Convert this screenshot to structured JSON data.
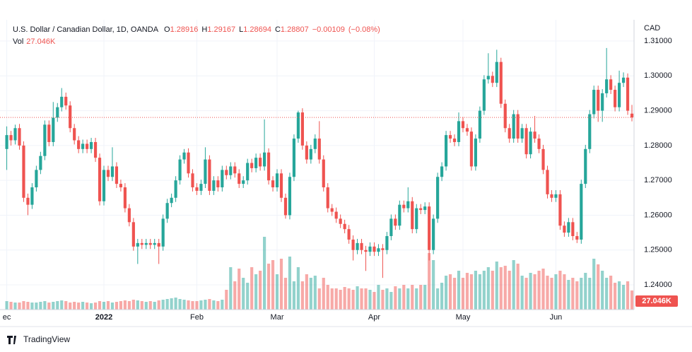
{
  "chart_data": {
    "type": "candlestick",
    "title": "U.S. Dollar / Canadian Dollar, 1D, OANDA",
    "legend_keys": [
      "O",
      "H",
      "L",
      "C"
    ],
    "change": {
      "value": -0.00109,
      "label": "−0.00109"
    },
    "change_pct": {
      "value": -0.08,
      "label": "(−0.08%)"
    },
    "volume_title": "Vol",
    "volume_last_label": "27.046K",
    "currency": "CAD",
    "brand": "TradingView",
    "up_color": "#26a69a",
    "down_color": "#ef5350",
    "grid": true,
    "xlim": [
      -1.6,
      148.5
    ],
    "xticks": [
      {
        "value": 0,
        "label": "ec"
      },
      {
        "value": 23,
        "label": "2022"
      },
      {
        "value": 45,
        "label": "Feb"
      },
      {
        "value": 64,
        "label": "Mar"
      },
      {
        "value": 87,
        "label": "Apr"
      },
      {
        "value": 108,
        "label": "May"
      },
      {
        "value": 130,
        "label": "Jun"
      }
    ],
    "ylim": [
      1.2329,
      1.3161
    ],
    "yticks": [
      {
        "value": 1.31,
        "label": "1.31000"
      },
      {
        "value": 1.3,
        "label": "1.30000"
      },
      {
        "value": 1.29,
        "label": "1.29000"
      },
      {
        "value": 1.28,
        "label": "1.28000"
      },
      {
        "value": 1.27,
        "label": "1.27000"
      },
      {
        "value": 1.26,
        "label": "1.26000"
      },
      {
        "value": 1.25,
        "label": "1.25000"
      },
      {
        "value": 1.24,
        "label": "1.24000"
      }
    ],
    "volume_lim": [
      0,
      120000
    ],
    "ohlc": [
      [
        1.279,
        1.2855,
        1.273,
        1.283
      ],
      [
        1.283,
        1.2842,
        1.28,
        1.2815
      ],
      [
        1.2815,
        1.286,
        1.2803,
        1.285
      ],
      [
        1.285,
        1.2862,
        1.2788,
        1.28
      ],
      [
        1.28,
        1.2812,
        1.2638,
        1.265
      ],
      [
        1.265,
        1.2662,
        1.26,
        1.263
      ],
      [
        1.263,
        1.2692,
        1.2618,
        1.268
      ],
      [
        1.268,
        1.2742,
        1.2668,
        1.273
      ],
      [
        1.273,
        1.2782,
        1.2718,
        1.277
      ],
      [
        1.277,
        1.2872,
        1.2758,
        1.286
      ],
      [
        1.286,
        1.2872,
        1.2798,
        1.281
      ],
      [
        1.281,
        1.2925,
        1.2798,
        1.288
      ],
      [
        1.288,
        1.2922,
        1.2868,
        1.291
      ],
      [
        1.291,
        1.2965,
        1.2898,
        1.294
      ],
      [
        1.294,
        1.2952,
        1.2903,
        1.2915
      ],
      [
        1.2915,
        1.2927,
        1.2838,
        1.285
      ],
      [
        1.285,
        1.2862,
        1.2803,
        1.2815
      ],
      [
        1.2815,
        1.2827,
        1.2778,
        1.279
      ],
      [
        1.279,
        1.2817,
        1.2778,
        1.2805
      ],
      [
        1.2805,
        1.2817,
        1.2778,
        1.279
      ],
      [
        1.279,
        1.2822,
        1.2778,
        1.281
      ],
      [
        1.281,
        1.2822,
        1.2753,
        1.2765
      ],
      [
        1.2765,
        1.2777,
        1.2628,
        1.264
      ],
      [
        1.264,
        1.2742,
        1.2628,
        1.273
      ],
      [
        1.273,
        1.2742,
        1.2698,
        1.271
      ],
      [
        1.271,
        1.2795,
        1.2698,
        1.274
      ],
      [
        1.274,
        1.2752,
        1.2678,
        1.269
      ],
      [
        1.269,
        1.2702,
        1.2668,
        1.268
      ],
      [
        1.268,
        1.2692,
        1.2608,
        1.262
      ],
      [
        1.262,
        1.2632,
        1.2568,
        1.258
      ],
      [
        1.258,
        1.2592,
        1.2498,
        1.251
      ],
      [
        1.251,
        1.2532,
        1.246,
        1.252
      ],
      [
        1.252,
        1.2532,
        1.2503,
        1.2515
      ],
      [
        1.2515,
        1.2532,
        1.2503,
        1.252
      ],
      [
        1.252,
        1.2532,
        1.2503,
        1.2515
      ],
      [
        1.2515,
        1.2532,
        1.2503,
        1.252
      ],
      [
        1.252,
        1.2532,
        1.246,
        1.251
      ],
      [
        1.251,
        1.2602,
        1.2498,
        1.259
      ],
      [
        1.259,
        1.2647,
        1.2578,
        1.2635
      ],
      [
        1.2635,
        1.2662,
        1.2623,
        1.265
      ],
      [
        1.265,
        1.2712,
        1.2638,
        1.27
      ],
      [
        1.27,
        1.2772,
        1.2688,
        1.276
      ],
      [
        1.276,
        1.279,
        1.2748,
        1.278
      ],
      [
        1.278,
        1.2792,
        1.2708,
        1.272
      ],
      [
        1.272,
        1.2732,
        1.2668,
        1.268
      ],
      [
        1.268,
        1.2692,
        1.2658,
        1.267
      ],
      [
        1.267,
        1.2702,
        1.2658,
        1.269
      ],
      [
        1.269,
        1.2795,
        1.2678,
        1.276
      ],
      [
        1.276,
        1.2772,
        1.2658,
        1.267
      ],
      [
        1.267,
        1.2712,
        1.2658,
        1.27
      ],
      [
        1.27,
        1.2712,
        1.2668,
        1.268
      ],
      [
        1.268,
        1.2742,
        1.2668,
        1.273
      ],
      [
        1.273,
        1.2742,
        1.2703,
        1.2715
      ],
      [
        1.2715,
        1.2752,
        1.2703,
        1.274
      ],
      [
        1.274,
        1.2752,
        1.2708,
        1.272
      ],
      [
        1.272,
        1.2732,
        1.2678,
        1.269
      ],
      [
        1.269,
        1.2712,
        1.2678,
        1.27
      ],
      [
        1.27,
        1.2762,
        1.2688,
        1.275
      ],
      [
        1.275,
        1.2762,
        1.2723,
        1.2735
      ],
      [
        1.2735,
        1.2777,
        1.2723,
        1.2765
      ],
      [
        1.2765,
        1.2777,
        1.2728,
        1.274
      ],
      [
        1.274,
        1.2875,
        1.2728,
        1.278
      ],
      [
        1.278,
        1.2792,
        1.2688,
        1.27
      ],
      [
        1.27,
        1.2712,
        1.2668,
        1.268
      ],
      [
        1.268,
        1.2732,
        1.2668,
        1.272
      ],
      [
        1.272,
        1.2732,
        1.2638,
        1.265
      ],
      [
        1.265,
        1.2662,
        1.259,
        1.26
      ],
      [
        1.26,
        1.2722,
        1.2588,
        1.271
      ],
      [
        1.271,
        1.2832,
        1.2698,
        1.282
      ],
      [
        1.282,
        1.29,
        1.2808,
        1.2895
      ],
      [
        1.2895,
        1.2907,
        1.2788,
        1.28
      ],
      [
        1.28,
        1.2812,
        1.2748,
        1.276
      ],
      [
        1.276,
        1.2802,
        1.2748,
        1.279
      ],
      [
        1.279,
        1.2832,
        1.2778,
        1.282
      ],
      [
        1.282,
        1.287,
        1.2748,
        1.276
      ],
      [
        1.276,
        1.2772,
        1.2668,
        1.268
      ],
      [
        1.268,
        1.2692,
        1.2608,
        1.262
      ],
      [
        1.262,
        1.2632,
        1.2598,
        1.261
      ],
      [
        1.261,
        1.2622,
        1.2578,
        1.259
      ],
      [
        1.259,
        1.2602,
        1.2563,
        1.2575
      ],
      [
        1.2575,
        1.2587,
        1.2548,
        1.256
      ],
      [
        1.256,
        1.2572,
        1.2518,
        1.253
      ],
      [
        1.253,
        1.2542,
        1.247,
        1.25
      ],
      [
        1.25,
        1.2532,
        1.2488,
        1.252
      ],
      [
        1.252,
        1.2532,
        1.2488,
        1.25
      ],
      [
        1.25,
        1.2512,
        1.244,
        1.2495
      ],
      [
        1.2495,
        1.2522,
        1.2483,
        1.251
      ],
      [
        1.251,
        1.2522,
        1.2483,
        1.2495
      ],
      [
        1.2495,
        1.2517,
        1.2483,
        1.2505
      ],
      [
        1.2505,
        1.2517,
        1.242,
        1.25
      ],
      [
        1.25,
        1.2552,
        1.2488,
        1.254
      ],
      [
        1.254,
        1.2602,
        1.2528,
        1.259
      ],
      [
        1.259,
        1.2602,
        1.2558,
        1.257
      ],
      [
        1.257,
        1.2642,
        1.2558,
        1.263
      ],
      [
        1.263,
        1.2642,
        1.2608,
        1.262
      ],
      [
        1.262,
        1.268,
        1.2608,
        1.264
      ],
      [
        1.264,
        1.2652,
        1.2548,
        1.256
      ],
      [
        1.256,
        1.2632,
        1.2548,
        1.262
      ],
      [
        1.262,
        1.2632,
        1.2603,
        1.2615
      ],
      [
        1.2615,
        1.2637,
        1.2603,
        1.2625
      ],
      [
        1.2625,
        1.2637,
        1.247,
        1.25
      ],
      [
        1.25,
        1.2602,
        1.2488,
        1.259
      ],
      [
        1.259,
        1.2722,
        1.2578,
        1.271
      ],
      [
        1.271,
        1.2752,
        1.2698,
        1.274
      ],
      [
        1.274,
        1.2842,
        1.2728,
        1.283
      ],
      [
        1.283,
        1.2842,
        1.2808,
        1.282
      ],
      [
        1.282,
        1.2832,
        1.2798,
        1.281
      ],
      [
        1.281,
        1.2895,
        1.2798,
        1.287
      ],
      [
        1.287,
        1.2882,
        1.2838,
        1.285
      ],
      [
        1.285,
        1.2862,
        1.2828,
        1.284
      ],
      [
        1.284,
        1.2852,
        1.2728,
        1.274
      ],
      [
        1.274,
        1.2832,
        1.2728,
        1.282
      ],
      [
        1.282,
        1.2912,
        1.2808,
        1.29
      ],
      [
        1.29,
        1.3002,
        1.2888,
        1.299
      ],
      [
        1.299,
        1.3065,
        1.2978,
        1.3
      ],
      [
        1.3,
        1.3012,
        1.2968,
        1.298
      ],
      [
        1.298,
        1.3075,
        1.2968,
        1.304
      ],
      [
        1.304,
        1.3052,
        1.2908,
        1.292
      ],
      [
        1.292,
        1.2932,
        1.2838,
        1.285
      ],
      [
        1.285,
        1.2862,
        1.2808,
        1.282
      ],
      [
        1.282,
        1.2902,
        1.2808,
        1.289
      ],
      [
        1.289,
        1.2902,
        1.2808,
        1.282
      ],
      [
        1.282,
        1.2862,
        1.2808,
        1.285
      ],
      [
        1.285,
        1.2862,
        1.2763,
        1.2775
      ],
      [
        1.2775,
        1.2852,
        1.2763,
        1.284
      ],
      [
        1.284,
        1.2885,
        1.2808,
        1.282
      ],
      [
        1.282,
        1.2832,
        1.2778,
        1.279
      ],
      [
        1.279,
        1.2802,
        1.2718,
        1.273
      ],
      [
        1.273,
        1.2742,
        1.2648,
        1.266
      ],
      [
        1.266,
        1.2672,
        1.2638,
        1.265
      ],
      [
        1.265,
        1.2672,
        1.2638,
        1.266
      ],
      [
        1.266,
        1.2672,
        1.2558,
        1.257
      ],
      [
        1.257,
        1.2582,
        1.2538,
        1.255
      ],
      [
        1.255,
        1.2592,
        1.2538,
        1.258
      ],
      [
        1.258,
        1.2592,
        1.2528,
        1.254
      ],
      [
        1.254,
        1.2552,
        1.252,
        1.253
      ],
      [
        1.253,
        1.2702,
        1.2518,
        1.269
      ],
      [
        1.269,
        1.2802,
        1.2678,
        1.279
      ],
      [
        1.279,
        1.2902,
        1.2778,
        1.289
      ],
      [
        1.289,
        1.2972,
        1.2878,
        1.296
      ],
      [
        1.296,
        1.2972,
        1.2868,
        1.29
      ],
      [
        1.29,
        1.2962,
        1.2868,
        1.295
      ],
      [
        1.295,
        1.308,
        1.2938,
        1.299
      ],
      [
        1.299,
        1.3002,
        1.2948,
        1.296
      ],
      [
        1.296,
        1.2972,
        1.2898,
        1.291
      ],
      [
        1.291,
        1.3015,
        1.2898,
        1.298
      ],
      [
        1.298,
        1.301,
        1.2968,
        1.2995
      ],
      [
        1.2995,
        1.3007,
        1.2888,
        1.29
      ],
      [
        1.28916,
        1.29167,
        1.28694,
        1.28807
      ]
    ],
    "volume": [
      12000,
      11000,
      10000,
      10000,
      12000,
      11000,
      10000,
      10000,
      11000,
      12000,
      10000,
      11000,
      12000,
      13000,
      12000,
      10000,
      11000,
      10000,
      11000,
      10000,
      9000,
      10000,
      12000,
      11000,
      12000,
      10000,
      11000,
      12000,
      13000,
      12000,
      14000,
      13000,
      12000,
      11000,
      12000,
      11000,
      13000,
      14000,
      15000,
      16000,
      17000,
      15000,
      14000,
      13000,
      12000,
      12000,
      13000,
      14000,
      15000,
      13000,
      12000,
      14000,
      28000,
      60000,
      40000,
      58000,
      45000,
      38000,
      60000,
      50000,
      55000,
      103000,
      65000,
      70000,
      50000,
      72000,
      45000,
      75000,
      40000,
      60000,
      40000,
      50000,
      45000,
      48000,
      30000,
      45000,
      35000,
      30000,
      30000,
      28000,
      32000,
      30000,
      28000,
      33000,
      30000,
      30000,
      28000,
      25000,
      35000,
      28000,
      30000,
      25000,
      33000,
      30000,
      35000,
      30000,
      35000,
      30000,
      35000,
      35000,
      80000,
      70000,
      30000,
      38000,
      48000,
      50000,
      45000,
      55000,
      45000,
      52000,
      50000,
      55000,
      50000,
      55000,
      60000,
      55000,
      68000,
      60000,
      62000,
      55000,
      70000,
      65000,
      48000,
      45000,
      52000,
      50000,
      55000,
      58000,
      48000,
      45000,
      50000,
      55000,
      50000,
      42000,
      45000,
      40000,
      45000,
      52000,
      45000,
      72000,
      64000,
      55000,
      45000,
      48000,
      38000,
      40000,
      35000,
      40000,
      27046
    ]
  }
}
